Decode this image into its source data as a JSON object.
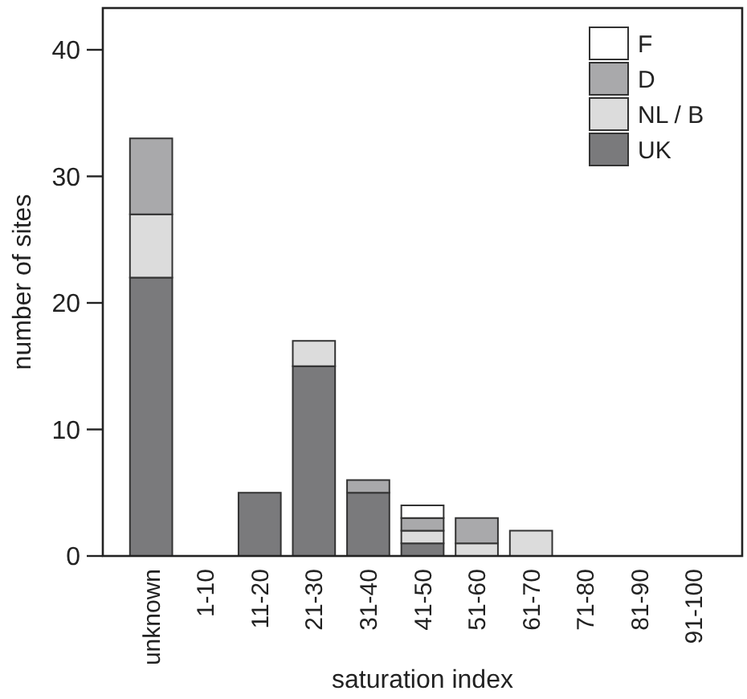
{
  "chart_data": {
    "type": "bar",
    "stacked": true,
    "xlabel": "saturation index",
    "ylabel": "number of sites",
    "categories": [
      "unknown",
      "1-10",
      "11-20",
      "21-30",
      "31-40",
      "41-50",
      "51-60",
      "61-70",
      "71-80",
      "81-90",
      "91-100"
    ],
    "series": [
      {
        "name": "UK",
        "color": "#7a7a7c",
        "values": [
          22,
          0,
          5,
          15,
          5,
          1,
          0,
          0,
          0,
          0,
          0
        ]
      },
      {
        "name": "NL / B",
        "color": "#dcdcdc",
        "values": [
          5,
          0,
          0,
          2,
          0,
          1,
          1,
          2,
          0,
          0,
          0
        ]
      },
      {
        "name": "D",
        "color": "#a9a9ab",
        "values": [
          6,
          0,
          0,
          0,
          1,
          1,
          2,
          0,
          0,
          0,
          0
        ]
      },
      {
        "name": "F",
        "color": "#ffffff",
        "values": [
          0,
          0,
          0,
          0,
          0,
          1,
          0,
          0,
          0,
          0,
          0
        ]
      }
    ],
    "ylim": [
      0,
      43.3
    ],
    "yticks": [
      0,
      10,
      20,
      30,
      40
    ],
    "grid": false,
    "legend": "top right"
  }
}
